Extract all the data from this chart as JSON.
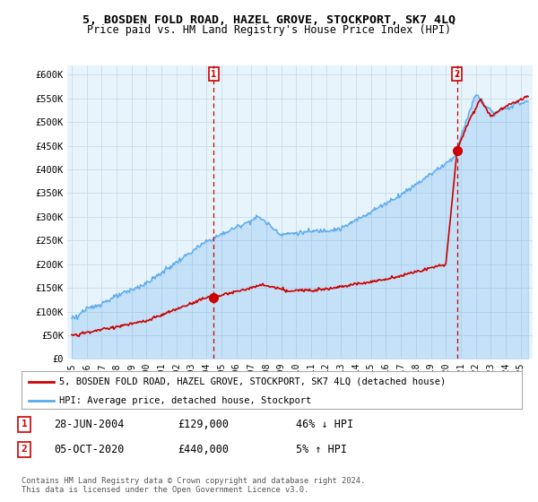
{
  "title": "5, BOSDEN FOLD ROAD, HAZEL GROVE, STOCKPORT, SK7 4LQ",
  "subtitle": "Price paid vs. HM Land Registry's House Price Index (HPI)",
  "ylabel_ticks": [
    "£0",
    "£50K",
    "£100K",
    "£150K",
    "£200K",
    "£250K",
    "£300K",
    "£350K",
    "£400K",
    "£450K",
    "£500K",
    "£550K",
    "£600K"
  ],
  "ytick_values": [
    0,
    50000,
    100000,
    150000,
    200000,
    250000,
    300000,
    350000,
    400000,
    450000,
    500000,
    550000,
    600000
  ],
  "ylim": [
    0,
    620000
  ],
  "hpi_color": "#5aaaee",
  "hpi_fill": "#ddeeff",
  "price_color": "#cc0000",
  "transaction_color": "#cc0000",
  "sale1_x": 2004.49,
  "sale1_y": 129000,
  "sale1_label": "1",
  "sale2_x": 2020.75,
  "sale2_y": 440000,
  "sale2_label": "2",
  "legend_entry1": "5, BOSDEN FOLD ROAD, HAZEL GROVE, STOCKPORT, SK7 4LQ (detached house)",
  "legend_entry2": "HPI: Average price, detached house, Stockport",
  "table_row1": [
    "1",
    "28-JUN-2004",
    "£129,000",
    "46% ↓ HPI"
  ],
  "table_row2": [
    "2",
    "05-OCT-2020",
    "£440,000",
    "5% ↑ HPI"
  ],
  "footnote": "Contains HM Land Registry data © Crown copyright and database right 2024.\nThis data is licensed under the Open Government Licence v3.0.",
  "background_color": "#ffffff",
  "chart_bg": "#e8f4fc",
  "grid_color": "#c8dce8",
  "xlim_start": 1994.7,
  "xlim_end": 2025.8,
  "title_fontsize": 9.5,
  "subtitle_fontsize": 8.5
}
